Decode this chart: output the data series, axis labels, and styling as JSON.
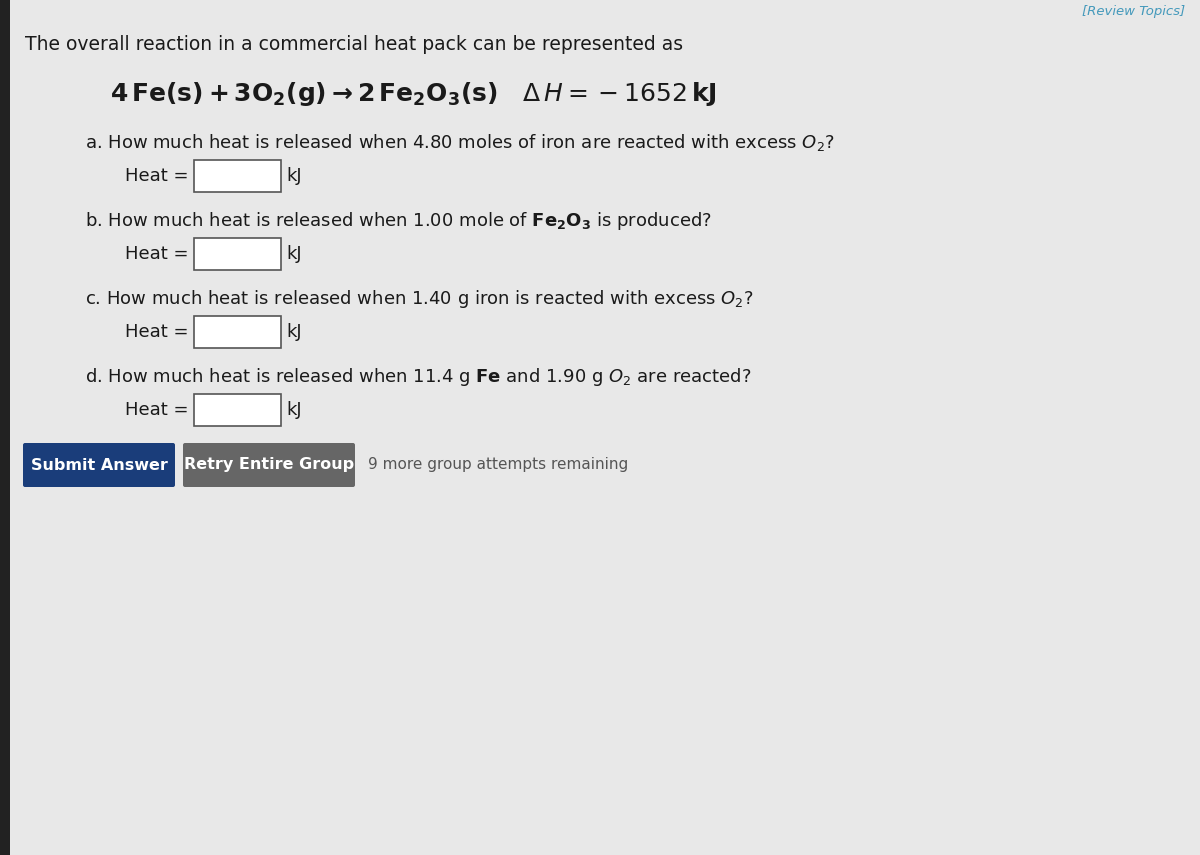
{
  "bg_color": "#e8e8e8",
  "text_color": "#1a1a1a",
  "review_color": "#4499bb",
  "input_bg": "#ffffff",
  "input_border": "#555555",
  "submit_bg": "#1a3d7a",
  "retry_bg": "#666666",
  "btn_text_color": "#ffffff",
  "attempts_color": "#555555",
  "left_bar_color": "#222222",
  "title": "The overall reaction in a commercial heat pack can be represented as",
  "review_text": "[Review Topics]",
  "submit_text": "Submit Answer",
  "retry_text": "Retry Entire Group",
  "attempts_text": "9 more group attempts remaining"
}
